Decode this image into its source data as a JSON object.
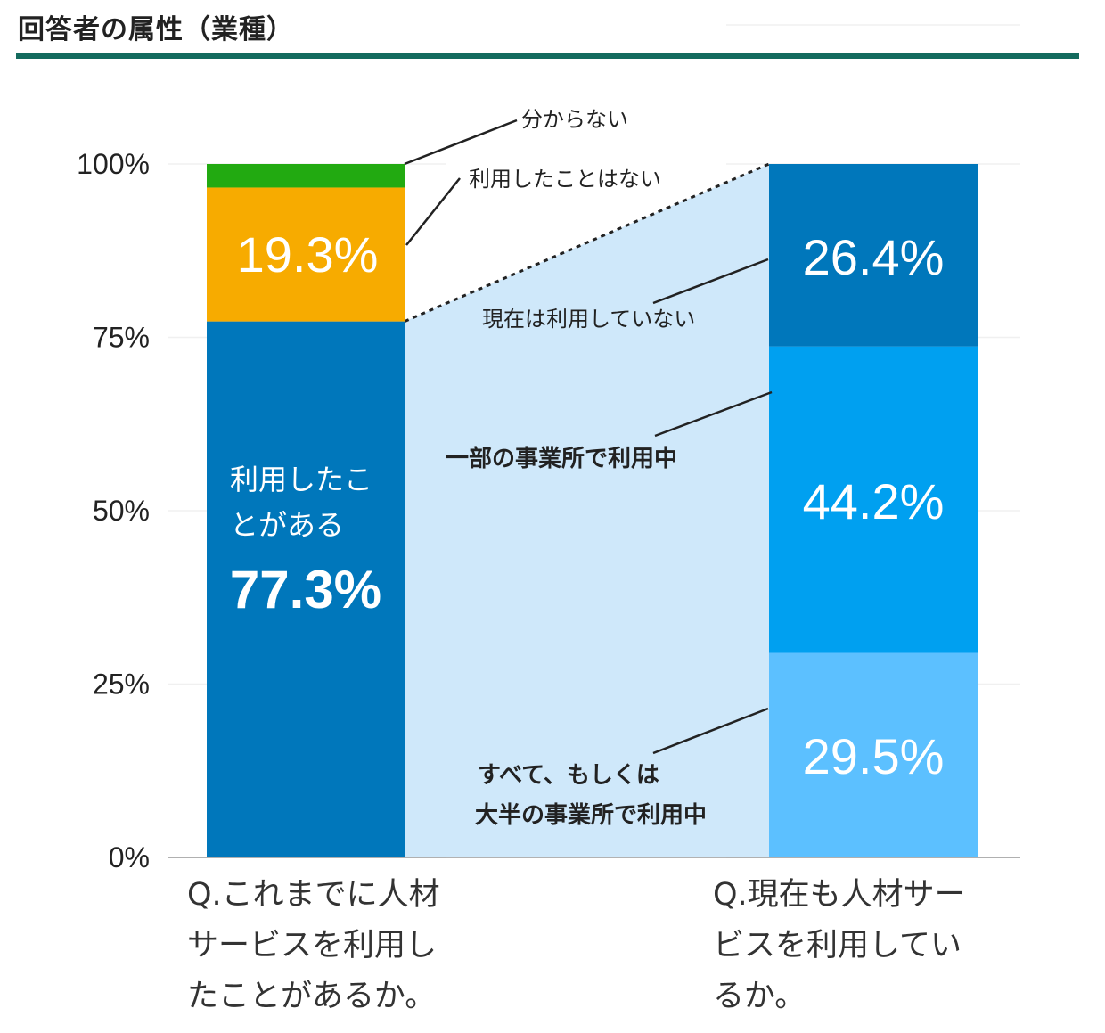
{
  "header": {
    "title": "回答者の属性（業種）"
  },
  "colors": {
    "accent_rule": "#146b5e",
    "used": "#0077bb",
    "not_used": "#f7ab00",
    "unknown": "#22aa11",
    "currently_not": "#0077bb",
    "some_offices": "#00a0f0",
    "all_offices": "#5cc0ff",
    "connector_band": "#cfe8fa"
  },
  "chart_data": {
    "type": "bar",
    "stacked": true,
    "ylim": [
      0,
      100
    ],
    "yticks": [
      0,
      25,
      50,
      75,
      100
    ],
    "ytick_labels": [
      "0%",
      "25%",
      "50%",
      "75%",
      "100%"
    ],
    "grid": false,
    "categories": [
      "Q.これまでに人材サービスを利用したことがあるか。",
      "Q.現在も人材サービスを利用しているか。"
    ],
    "bars": [
      {
        "question_lines": [
          "Q.これまでに人材",
          "サービスを利用し",
          "たことがあるか。"
        ],
        "segments": [
          {
            "name": "利用したことがある",
            "label_lines": [
              "利用したこ",
              "とがある"
            ],
            "value": 77.3,
            "value_label": "77.3%",
            "color": "#0077bb"
          },
          {
            "name": "利用したことはない",
            "value": 19.3,
            "value_label": "19.3%",
            "color": "#f7ab00"
          },
          {
            "name": "分からない",
            "value": 3.4,
            "value_label": "",
            "color": "#22aa11"
          }
        ]
      },
      {
        "question_lines": [
          "Q.現在も人材サー",
          "ビスを利用してい",
          "るか。"
        ],
        "segments": [
          {
            "name": "すべて、もしくは大半の事業所で利用中",
            "label_lines": [
              "すべて、もしくは",
              "大半の事業所で利用中"
            ],
            "value": 29.5,
            "value_label": "29.5%",
            "color": "#5cc0ff"
          },
          {
            "name": "一部の事業所で利用中",
            "value": 44.2,
            "value_label": "44.2%",
            "color": "#00a0f0"
          },
          {
            "name": "現在は利用していない",
            "value": 26.4,
            "value_label": "26.4%",
            "color": "#0077bb"
          }
        ]
      }
    ]
  }
}
